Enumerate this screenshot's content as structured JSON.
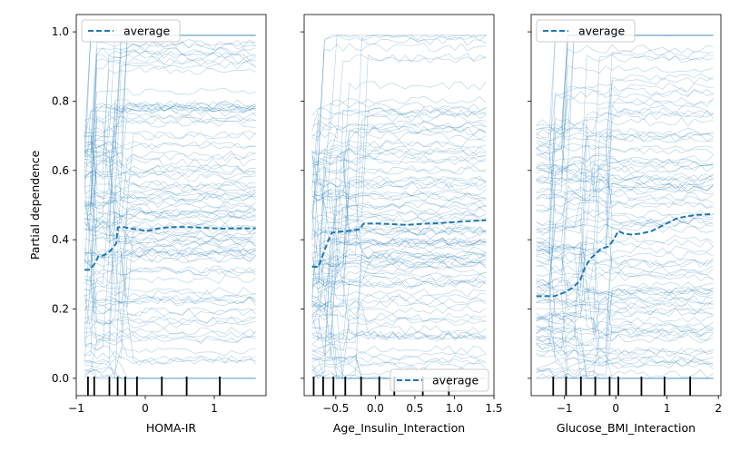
{
  "chart_data": {
    "type": "line",
    "ylabel": "Partial dependence",
    "shared_y": true,
    "ylim": [
      -0.05,
      1.05
    ],
    "yticks": [
      0.0,
      0.2,
      0.4,
      0.6,
      0.8,
      1.0
    ],
    "ytick_labels": [
      "0.0",
      "0.2",
      "0.4",
      "0.6",
      "0.8",
      "1.0"
    ],
    "individual_lines_color": "#1f77b4",
    "average_color": "#1f77b4",
    "panels": [
      {
        "xlabel": "HOMA-IR",
        "xlim": [
          -1.0,
          1.75
        ],
        "xticks": [
          -1,
          0,
          1
        ],
        "xtick_labels": [
          "−1",
          "0",
          "1"
        ],
        "legend": {
          "label": "average",
          "position": "upper-left"
        },
        "deciles": [
          -0.83,
          -0.74,
          -0.52,
          -0.4,
          -0.29,
          -0.12,
          0.24,
          0.6,
          1.08
        ],
        "average": {
          "x": [
            -0.88,
            -0.82,
            -0.78,
            -0.72,
            -0.68,
            -0.6,
            -0.52,
            -0.46,
            -0.42,
            -0.4,
            -0.35,
            -0.2,
            -0.1,
            0.0,
            0.1,
            0.2,
            0.35,
            0.5,
            0.7,
            0.9,
            1.1,
            1.3,
            1.6
          ],
          "y": [
            0.313,
            0.313,
            0.318,
            0.335,
            0.352,
            0.355,
            0.366,
            0.378,
            0.39,
            0.435,
            0.438,
            0.432,
            0.429,
            0.426,
            0.428,
            0.433,
            0.436,
            0.437,
            0.436,
            0.434,
            0.432,
            0.433,
            0.433
          ]
        }
      },
      {
        "xlabel": "Age_Insulin_Interaction",
        "xlim": [
          -0.9,
          1.5
        ],
        "xticks": [
          -0.5,
          0.0,
          0.5,
          1.0,
          1.5
        ],
        "xtick_labels": [
          "−0.5",
          "0.0",
          "0.5",
          "1.0",
          "1.5"
        ],
        "legend": {
          "label": "average",
          "position": "lower-right"
        },
        "deciles": [
          -0.78,
          -0.66,
          -0.53,
          -0.38,
          -0.18,
          0.05,
          0.24,
          0.6,
          0.93
        ],
        "average": {
          "x": [
            -0.8,
            -0.72,
            -0.67,
            -0.6,
            -0.55,
            -0.48,
            -0.35,
            -0.2,
            -0.15,
            0.0,
            0.2,
            0.4,
            0.6,
            0.8,
            1.0,
            1.2,
            1.4
          ],
          "y": [
            0.322,
            0.322,
            0.352,
            0.395,
            0.42,
            0.423,
            0.425,
            0.43,
            0.446,
            0.447,
            0.445,
            0.443,
            0.446,
            0.448,
            0.451,
            0.454,
            0.456
          ]
        }
      },
      {
        "xlabel": "Glucose_BMI_Interaction",
        "xlim": [
          -1.65,
          2.05
        ],
        "xticks": [
          -1,
          0,
          1,
          2
        ],
        "xtick_labels": [
          "−1",
          "0",
          "1",
          "2"
        ],
        "legend": {
          "label": "average",
          "position": "upper-left"
        },
        "deciles": [
          -1.22,
          -0.97,
          -0.68,
          -0.4,
          -0.12,
          0.05,
          0.5,
          0.95,
          1.45
        ],
        "average": {
          "x": [
            -1.55,
            -1.2,
            -1.0,
            -0.85,
            -0.7,
            -0.6,
            -0.5,
            -0.4,
            -0.3,
            -0.15,
            -0.05,
            0.05,
            0.15,
            0.3,
            0.5,
            0.7,
            0.9,
            1.0,
            1.2,
            1.4,
            1.6,
            1.9
          ],
          "y": [
            0.237,
            0.237,
            0.248,
            0.26,
            0.282,
            0.32,
            0.345,
            0.358,
            0.373,
            0.38,
            0.398,
            0.425,
            0.418,
            0.415,
            0.418,
            0.425,
            0.44,
            0.448,
            0.462,
            0.468,
            0.472,
            0.474
          ]
        }
      }
    ]
  }
}
